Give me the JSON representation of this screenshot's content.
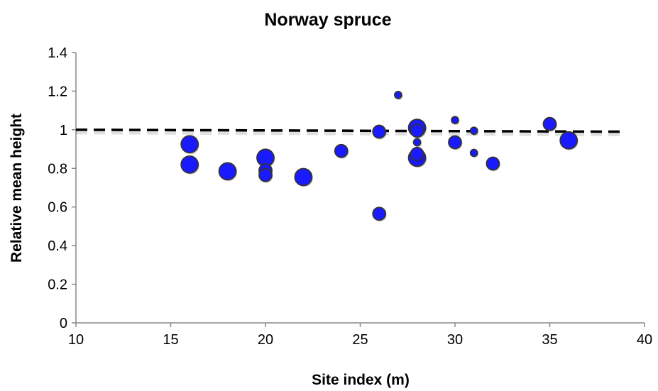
{
  "chart_data": {
    "type": "scatter",
    "title": "Norway spruce",
    "xlabel": "Site index (m)",
    "ylabel": "Relative mean height",
    "xlim": [
      10,
      40
    ],
    "ylim": [
      0,
      1.4
    ],
    "xticks": [
      10,
      15,
      20,
      25,
      30,
      35,
      40
    ],
    "yticks": [
      0,
      0.2,
      0.4,
      0.6,
      0.8,
      1,
      1.2,
      1.4
    ],
    "xtick_labels": [
      "10",
      "15",
      "20",
      "25",
      "30",
      "35",
      "40"
    ],
    "ytick_labels": [
      "0",
      "0.2",
      "0.4",
      "0.6",
      "0.8",
      "1",
      "1.2",
      "1.4"
    ],
    "grid": false,
    "legend": false,
    "point_color": "#1a1aff",
    "point_edge_color": "#333333",
    "reference_line": {
      "style": "dashed",
      "color": "#000000",
      "x": [
        10,
        39
      ],
      "y": [
        1.0,
        0.99
      ]
    },
    "points": [
      {
        "x": 16,
        "y": 0.925,
        "size": 3
      },
      {
        "x": 16,
        "y": 0.82,
        "size": 3
      },
      {
        "x": 18,
        "y": 0.785,
        "size": 3
      },
      {
        "x": 20,
        "y": 0.855,
        "size": 3
      },
      {
        "x": 20,
        "y": 0.79,
        "size": 2
      },
      {
        "x": 20,
        "y": 0.765,
        "size": 2
      },
      {
        "x": 22,
        "y": 0.755,
        "size": 3
      },
      {
        "x": 24,
        "y": 0.89,
        "size": 2
      },
      {
        "x": 26,
        "y": 0.99,
        "size": 2
      },
      {
        "x": 26,
        "y": 0.565,
        "size": 2
      },
      {
        "x": 27,
        "y": 1.18,
        "size": 1
      },
      {
        "x": 28,
        "y": 1.01,
        "size": 3
      },
      {
        "x": 28,
        "y": 0.995,
        "size": 2
      },
      {
        "x": 28,
        "y": 0.935,
        "size": 1
      },
      {
        "x": 28,
        "y": 0.875,
        "size": 2
      },
      {
        "x": 28,
        "y": 0.855,
        "size": 3
      },
      {
        "x": 30,
        "y": 1.05,
        "size": 1
      },
      {
        "x": 30,
        "y": 0.935,
        "size": 2
      },
      {
        "x": 31,
        "y": 0.995,
        "size": 1
      },
      {
        "x": 31,
        "y": 0.88,
        "size": 1
      },
      {
        "x": 32,
        "y": 0.825,
        "size": 2
      },
      {
        "x": 35,
        "y": 1.03,
        "size": 2
      },
      {
        "x": 36,
        "y": 0.945,
        "size": 3
      }
    ]
  }
}
